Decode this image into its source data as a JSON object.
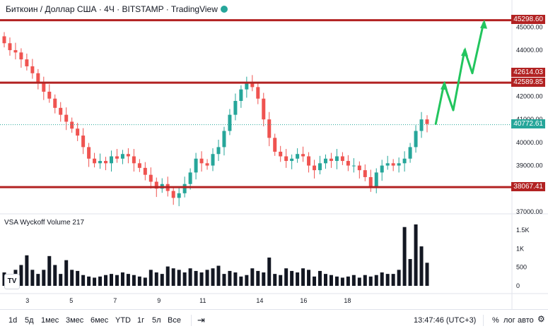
{
  "header": {
    "title": "Биткоин / Доллар США · 4Ч · BITSTAMP · TradingView",
    "status_color": "#26a69a"
  },
  "colors": {
    "up": "#26a69a",
    "down": "#ef5350",
    "level": "#b22222",
    "forecast": "#22c55e"
  },
  "price_axis": {
    "ticks": [
      "45000.00",
      "44000.00",
      "42000.00",
      "41000.00",
      "40000.00",
      "39000.00",
      "37000.00"
    ],
    "tick_values": [
      45000,
      44000,
      42000,
      41000,
      40000,
      39000,
      37000
    ],
    "range": [
      37000,
      45500
    ]
  },
  "levels": [
    {
      "label": "45298.60",
      "value": 45298.6
    },
    {
      "label": "42589.85",
      "value": 42589.85
    },
    {
      "label": "38067.41",
      "value": 38067.41
    }
  ],
  "level_extra_label": {
    "label": "42614.03",
    "value": 42614.03
  },
  "last_price": {
    "label": "40772.61",
    "value": 40772.61
  },
  "time_axis": {
    "labels": [
      "3",
      "5",
      "7",
      "9",
      "11",
      "14",
      "16",
      "18"
    ],
    "positions": [
      4,
      14,
      24,
      34,
      44,
      57,
      67,
      77
    ]
  },
  "candles": {
    "count": 76,
    "closes": [
      44300,
      44000,
      43900,
      43600,
      43300,
      43000,
      42600,
      42200,
      41900,
      41500,
      41200,
      40900,
      40600,
      40300,
      39800,
      39300,
      39100,
      39200,
      39100,
      39400,
      39300,
      39500,
      39400,
      39100,
      38900,
      38600,
      38300,
      38000,
      38200,
      37900,
      37600,
      37800,
      38200,
      38700,
      39300,
      39100,
      39000,
      39500,
      39800,
      40500,
      41200,
      41800,
      42300,
      42600,
      42400,
      41900,
      41000,
      40200,
      39600,
      39400,
      39200,
      39300,
      39500,
      39400,
      39000,
      38800,
      39100,
      39300,
      39200,
      39400,
      39200,
      39000,
      39000,
      38800,
      38500,
      38100,
      38700,
      39000,
      39100,
      39000,
      39100,
      39300,
      39800,
      40500,
      41000,
      40800
    ],
    "opens": [
      44600,
      44300,
      44000,
      43900,
      43600,
      43300,
      43000,
      42600,
      42200,
      41900,
      41500,
      41200,
      40900,
      40600,
      40300,
      39800,
      39300,
      39100,
      39200,
      39100,
      39400,
      39300,
      39500,
      39400,
      39100,
      38900,
      38600,
      38300,
      38000,
      38200,
      37900,
      37600,
      37800,
      38200,
      38700,
      39300,
      39100,
      39000,
      39500,
      39800,
      40500,
      41200,
      41800,
      42300,
      42600,
      42400,
      41900,
      41000,
      40200,
      39600,
      39400,
      39200,
      39300,
      39500,
      39400,
      39000,
      38800,
      39100,
      39300,
      39200,
      39400,
      39200,
      39000,
      39000,
      38800,
      38500,
      38100,
      38700,
      39000,
      39100,
      39000,
      39100,
      39300,
      39800,
      40500,
      41000
    ]
  },
  "forecast_path": [
    [
      40772,
      40772
    ],
    [
      42550,
      42550
    ],
    [
      41400,
      41400
    ],
    [
      44000,
      44000
    ],
    [
      43000,
      43000
    ],
    [
      45200,
      45200
    ]
  ],
  "vsa": {
    "label": "VSA Wyckoff Volume  217",
    "axis_ticks": [
      "1.5K",
      "1K",
      "500",
      "0"
    ],
    "tick_values": [
      1500,
      1000,
      500,
      0
    ],
    "max": 1650,
    "volumes": [
      360,
      250,
      430,
      560,
      820,
      430,
      320,
      430,
      800,
      560,
      320,
      690,
      430,
      400,
      290,
      250,
      220,
      250,
      290,
      320,
      290,
      360,
      320,
      290,
      250,
      220,
      430,
      360,
      320,
      520,
      470,
      430,
      360,
      470,
      400,
      360,
      430,
      470,
      540,
      320,
      400,
      360,
      250,
      290,
      470,
      400,
      360,
      760,
      320,
      290,
      470,
      400,
      360,
      470,
      430,
      250,
      400,
      320,
      290,
      250,
      220,
      250,
      290,
      220,
      290,
      250,
      290,
      360,
      320,
      320,
      430,
      1580,
      720,
      1650,
      1060,
      620
    ],
    "colors_down": [
      1,
      1,
      0,
      1,
      1,
      1,
      0,
      1,
      1,
      0,
      1,
      0,
      1,
      1,
      0,
      1,
      0,
      1,
      1,
      0,
      1,
      1,
      0,
      1,
      1,
      1,
      1,
      0,
      1,
      0,
      1,
      1,
      0,
      1,
      1,
      0,
      1,
      0,
      1,
      0,
      0,
      0,
      0,
      0,
      1,
      1,
      1,
      1,
      1,
      0,
      1,
      0,
      1,
      1,
      1,
      1,
      0,
      1,
      0,
      1,
      0,
      1,
      0,
      1,
      1,
      0,
      1,
      0,
      1,
      0,
      1,
      0,
      1,
      0,
      0,
      1
    ]
  },
  "toolbar": {
    "periods": [
      "1d",
      "5д",
      "1мес",
      "3мес",
      "6мес",
      "YTD",
      "1г",
      "5л",
      "Все"
    ],
    "time": "13:47:46 (UTC+3)",
    "percent": "%",
    "log": "лог",
    "auto": "авто"
  },
  "logo_text": "TV"
}
